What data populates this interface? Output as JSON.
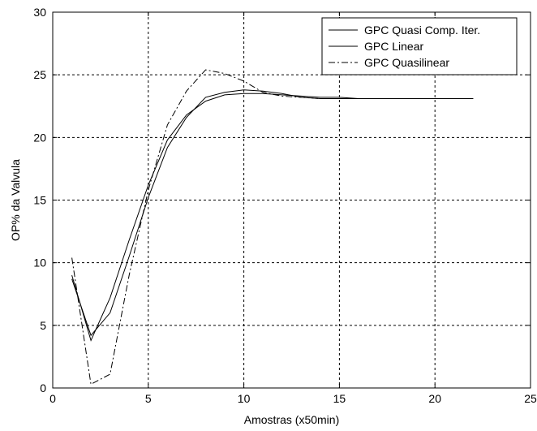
{
  "chart_data": {
    "type": "line",
    "title": "",
    "xlabel": "Amostras (x50min)",
    "ylabel": "OP% da Valvula",
    "xlim": [
      0,
      25
    ],
    "ylim": [
      0,
      30
    ],
    "xticks": [
      0,
      5,
      10,
      15,
      20,
      25
    ],
    "yticks": [
      0,
      5,
      10,
      15,
      20,
      25,
      30
    ],
    "grid": true,
    "legend_position": "top-right",
    "series": [
      {
        "name": "GPC Quasi Comp. Iter.",
        "style": "solid",
        "x": [
          1,
          2,
          3,
          4,
          5,
          6,
          7,
          8,
          9,
          10,
          11,
          12,
          13,
          14,
          15,
          16,
          17,
          18,
          19,
          20,
          21,
          22
        ],
        "y": [
          9.0,
          3.8,
          7.2,
          11.8,
          16.2,
          19.8,
          21.8,
          22.9,
          23.4,
          23.5,
          23.5,
          23.4,
          23.3,
          23.2,
          23.2,
          23.1,
          23.1,
          23.1,
          23.1,
          23.1,
          23.1,
          23.1
        ]
      },
      {
        "name": "GPC Linear",
        "style": "solid",
        "x": [
          1,
          2,
          3,
          4,
          5,
          6,
          7,
          8,
          9,
          10,
          11,
          12,
          13,
          14,
          15,
          16,
          17,
          18,
          19,
          20,
          21,
          22
        ],
        "y": [
          8.7,
          4.2,
          6.0,
          10.5,
          15.2,
          19.2,
          21.6,
          23.2,
          23.6,
          23.8,
          23.7,
          23.5,
          23.2,
          23.1,
          23.1,
          23.1,
          23.1,
          23.1,
          23.1,
          23.1,
          23.1,
          23.1
        ]
      },
      {
        "name": "GPC Quasilinear",
        "style": "dash-dot",
        "x": [
          1,
          2,
          3,
          4,
          5,
          6,
          7,
          8,
          9,
          10,
          11,
          12,
          13,
          14,
          15,
          16,
          17,
          18,
          19,
          20,
          21,
          22
        ],
        "y": [
          10.4,
          0.3,
          1.1,
          9.0,
          15.8,
          21.0,
          23.7,
          25.4,
          25.1,
          24.5,
          23.6,
          23.3,
          23.2,
          23.1,
          23.1,
          23.1,
          23.1,
          23.1,
          23.1,
          23.1,
          23.1,
          23.1
        ]
      }
    ]
  },
  "colors": {
    "line": "#000000",
    "grid": "#000000",
    "background": "#ffffff"
  }
}
